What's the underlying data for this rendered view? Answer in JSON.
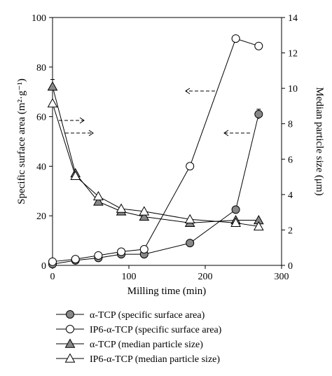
{
  "chart_data": {
    "type": "line",
    "xlabel": "Milling time (min)",
    "ylabel_left": "Specific surface area (m²·g⁻¹)",
    "ylabel_right": "Median particle size (μm)",
    "xlim": [
      0,
      300
    ],
    "ylim_left": [
      0,
      100
    ],
    "ylim_right": [
      0,
      14
    ],
    "x_ticks": [
      0,
      100,
      200,
      300
    ],
    "y_ticks_left": [
      0,
      20,
      40,
      60,
      80,
      100
    ],
    "y_ticks_right": [
      0,
      2,
      4,
      6,
      8,
      10,
      12,
      14
    ],
    "grid": false,
    "legend_position": "bottom",
    "series": [
      {
        "name": "α-TCP (specific surface area)",
        "axis": "left",
        "marker": "circle",
        "fill": "#888888",
        "x": [
          0,
          30,
          60,
          90,
          120,
          180,
          240,
          270
        ],
        "y": [
          0.5,
          2,
          3,
          4.5,
          4.5,
          9,
          22.5,
          61
        ]
      },
      {
        "name": "IP6-α-TCP (specific surface area)",
        "axis": "left",
        "marker": "circle",
        "fill": "#ffffff",
        "x": [
          0,
          30,
          60,
          90,
          120,
          180,
          240,
          270
        ],
        "y": [
          1.5,
          2.5,
          4,
          5.5,
          6.5,
          40,
          91.5,
          88.5
        ]
      },
      {
        "name": "α-TCP (median particle size)",
        "axis": "right",
        "marker": "triangle",
        "fill": "#888888",
        "x": [
          0,
          30,
          60,
          90,
          120,
          180,
          240,
          270
        ],
        "y": [
          10.1,
          5.2,
          3.6,
          3.05,
          2.75,
          2.4,
          2.55,
          2.55
        ]
      },
      {
        "name": "IP6-α-TCP (median particle size)",
        "axis": "right",
        "marker": "triangle",
        "fill": "#ffffff",
        "x": [
          0,
          30,
          60,
          90,
          120,
          180,
          240,
          270
        ],
        "y": [
          9.15,
          5.05,
          3.9,
          3.2,
          3.05,
          2.6,
          2.4,
          2.2
        ]
      }
    ]
  }
}
